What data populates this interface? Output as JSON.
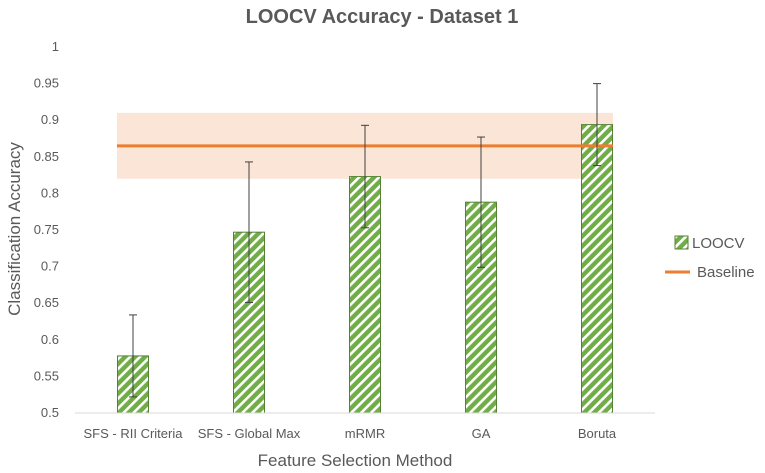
{
  "chart_data": {
    "type": "bar",
    "title": "LOOCV Accuracy - Dataset 1",
    "xlabel": "Feature Selection Method",
    "ylabel": "Classification Accuracy",
    "categories": [
      "SFS - RII Criteria",
      "SFS - Global Max",
      "mRMR",
      "GA",
      "Boruta"
    ],
    "ylim": [
      0.5,
      1
    ],
    "yticks": [
      0.5,
      0.55,
      0.6,
      0.65,
      0.7,
      0.75,
      0.8,
      0.85,
      0.9,
      0.95,
      1
    ],
    "ytick_labels": [
      "0.5",
      "0.55",
      "0.6",
      "0.65",
      "0.7",
      "0.75",
      "0.8",
      "0.85",
      "0.9",
      "0.95",
      "1"
    ],
    "series": [
      {
        "name": "LOOCV",
        "values": [
          0.578,
          0.747,
          0.823,
          0.788,
          0.894
        ],
        "error": [
          0.056,
          0.096,
          0.07,
          0.089,
          0.056
        ],
        "color": "#70AD47",
        "pattern": "diagonal-stripes"
      }
    ],
    "baseline": {
      "name": "Baseline",
      "value": 0.865,
      "band": [
        0.82,
        0.91
      ],
      "color": "#ED7D31",
      "band_color": "#FBE5D6"
    },
    "legend_position": "right",
    "grid": false
  }
}
